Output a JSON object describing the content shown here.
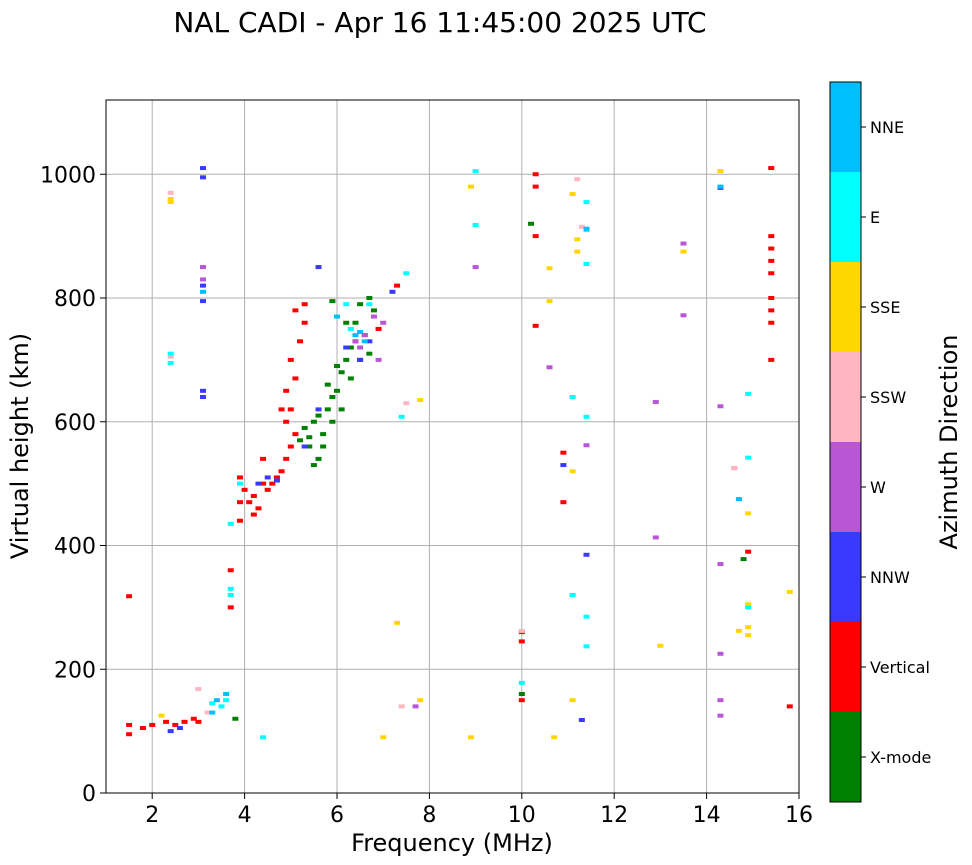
{
  "chart_data": {
    "type": "scatter",
    "title": "NAL CADI - Apr 16 11:45:00 2025 UTC",
    "xlabel": "Frequency (MHz)",
    "ylabel": "Virtual height (km)",
    "xlim": [
      1,
      16
    ],
    "ylim": [
      0,
      1120
    ],
    "xticks": [
      2,
      4,
      6,
      8,
      10,
      12,
      14,
      16
    ],
    "yticks": [
      0,
      200,
      400,
      600,
      800,
      1000
    ],
    "grid": true,
    "colorbar": {
      "label": "Azimuth Direction",
      "categories": [
        {
          "name": "X-mode",
          "color": "#008000"
        },
        {
          "name": "Vertical",
          "color": "#ff0000"
        },
        {
          "name": "NNW",
          "color": "#3a3aff"
        },
        {
          "name": "W",
          "color": "#b956d6"
        },
        {
          "name": "SSW",
          "color": "#ffb6c1"
        },
        {
          "name": "SSE",
          "color": "#ffd700"
        },
        {
          "name": "E",
          "color": "#00ffff"
        },
        {
          "name": "NNE",
          "color": "#00bfff"
        }
      ]
    },
    "series": [
      {
        "name": "X-mode",
        "points": [
          [
            5.3,
            590
          ],
          [
            5.4,
            575
          ],
          [
            5.5,
            600
          ],
          [
            5.6,
            610
          ],
          [
            5.7,
            560
          ],
          [
            5.8,
            620
          ],
          [
            5.9,
            640
          ],
          [
            6.0,
            650
          ],
          [
            6.1,
            680
          ],
          [
            6.2,
            700
          ],
          [
            6.3,
            720
          ],
          [
            6.4,
            760
          ],
          [
            6.5,
            790
          ],
          [
            6.6,
            740
          ],
          [
            6.7,
            710
          ],
          [
            6.8,
            780
          ],
          [
            5.5,
            530
          ],
          [
            5.7,
            580
          ],
          [
            5.9,
            600
          ],
          [
            6.1,
            620
          ],
          [
            6.3,
            670
          ],
          [
            6.0,
            690
          ],
          [
            5.8,
            660
          ],
          [
            6.2,
            760
          ],
          [
            6.5,
            700
          ],
          [
            5.6,
            540
          ],
          [
            5.4,
            560
          ],
          [
            6.4,
            730
          ],
          [
            3.8,
            120
          ],
          [
            10.2,
            920
          ],
          [
            10.0,
            160
          ],
          [
            14.8,
            378
          ],
          [
            5.9,
            795
          ],
          [
            6.7,
            800
          ],
          [
            5.2,
            570
          ]
        ]
      },
      {
        "name": "Vertical",
        "points": [
          [
            4.0,
            490
          ],
          [
            4.1,
            470
          ],
          [
            4.2,
            480
          ],
          [
            4.3,
            460
          ],
          [
            4.4,
            500
          ],
          [
            4.5,
            490
          ],
          [
            4.6,
            500
          ],
          [
            4.7,
            510
          ],
          [
            4.8,
            520
          ],
          [
            4.9,
            540
          ],
          [
            5.0,
            560
          ],
          [
            5.1,
            580
          ],
          [
            4.9,
            600
          ],
          [
            5.0,
            620
          ],
          [
            4.9,
            650
          ],
          [
            5.1,
            670
          ],
          [
            5.0,
            700
          ],
          [
            5.2,
            730
          ],
          [
            5.3,
            760
          ],
          [
            5.3,
            790
          ],
          [
            5.1,
            780
          ],
          [
            4.8,
            620
          ],
          [
            4.2,
            450
          ],
          [
            3.9,
            440
          ],
          [
            3.9,
            470
          ],
          [
            3.9,
            510
          ],
          [
            4.4,
            540
          ],
          [
            3.7,
            300
          ],
          [
            3.7,
            360
          ],
          [
            1.5,
            95
          ],
          [
            1.5,
            110
          ],
          [
            1.5,
            318
          ],
          [
            1.8,
            105
          ],
          [
            2.0,
            110
          ],
          [
            2.3,
            115
          ],
          [
            2.5,
            110
          ],
          [
            2.7,
            115
          ],
          [
            2.9,
            120
          ],
          [
            3.0,
            115
          ],
          [
            10.3,
            1000
          ],
          [
            10.3,
            980
          ],
          [
            10.3,
            900
          ],
          [
            10.3,
            755
          ],
          [
            10.0,
            150
          ],
          [
            10.0,
            245
          ],
          [
            10.0,
            260
          ],
          [
            10.9,
            470
          ],
          [
            10.9,
            550
          ],
          [
            15.4,
            1010
          ],
          [
            15.4,
            900
          ],
          [
            15.4,
            880
          ],
          [
            15.4,
            860
          ],
          [
            15.4,
            840
          ],
          [
            15.4,
            800
          ],
          [
            15.4,
            780
          ],
          [
            15.4,
            760
          ],
          [
            15.4,
            700
          ],
          [
            14.9,
            390
          ],
          [
            15.8,
            140
          ],
          [
            7.3,
            820
          ],
          [
            6.9,
            750
          ]
        ]
      },
      {
        "name": "NNW",
        "points": [
          [
            3.1,
            1010
          ],
          [
            3.1,
            995
          ],
          [
            3.1,
            820
          ],
          [
            3.1,
            795
          ],
          [
            3.1,
            650
          ],
          [
            3.1,
            640
          ],
          [
            4.3,
            500
          ],
          [
            4.5,
            510
          ],
          [
            4.7,
            505
          ],
          [
            5.3,
            560
          ],
          [
            5.6,
            620
          ],
          [
            6.5,
            700
          ],
          [
            6.7,
            730
          ],
          [
            2.4,
            100
          ],
          [
            2.6,
            105
          ],
          [
            10.9,
            530
          ],
          [
            11.4,
            385
          ],
          [
            11.3,
            118
          ],
          [
            14.3,
            978
          ],
          [
            5.6,
            850
          ],
          [
            6.2,
            720
          ],
          [
            7.2,
            810
          ]
        ]
      },
      {
        "name": "W",
        "points": [
          [
            3.1,
            850
          ],
          [
            3.1,
            830
          ],
          [
            6.5,
            720
          ],
          [
            6.6,
            740
          ],
          [
            6.8,
            770
          ],
          [
            7.0,
            760
          ],
          [
            6.4,
            730
          ],
          [
            6.9,
            700
          ],
          [
            7.7,
            140
          ],
          [
            9.0,
            850
          ],
          [
            10.6,
            688
          ],
          [
            11.4,
            562
          ],
          [
            12.9,
            632
          ],
          [
            13.5,
            772
          ],
          [
            13.5,
            888
          ],
          [
            14.3,
            625
          ],
          [
            14.3,
            370
          ],
          [
            14.3,
            225
          ],
          [
            14.3,
            150
          ],
          [
            14.3,
            125
          ],
          [
            12.9,
            413
          ],
          [
            14.6,
            525
          ]
        ]
      },
      {
        "name": "SSW",
        "points": [
          [
            2.4,
            970
          ],
          [
            2.4,
            705
          ],
          [
            3.0,
            168
          ],
          [
            7.5,
            630
          ],
          [
            7.4,
            140
          ],
          [
            10.0,
            262
          ],
          [
            11.2,
            992
          ],
          [
            11.3,
            915
          ],
          [
            14.6,
            525
          ],
          [
            3.2,
            130
          ]
        ]
      },
      {
        "name": "SSE",
        "points": [
          [
            2.4,
            960
          ],
          [
            2.4,
            955
          ],
          [
            7.3,
            275
          ],
          [
            7.0,
            90
          ],
          [
            8.9,
            980
          ],
          [
            8.9,
            90
          ],
          [
            10.6,
            848
          ],
          [
            10.6,
            795
          ],
          [
            10.7,
            90
          ],
          [
            11.1,
            968
          ],
          [
            11.2,
            895
          ],
          [
            11.2,
            875
          ],
          [
            11.1,
            520
          ],
          [
            11.1,
            150
          ],
          [
            13.0,
            238
          ],
          [
            13.5,
            875
          ],
          [
            14.3,
            1005
          ],
          [
            14.7,
            262
          ],
          [
            14.9,
            452
          ],
          [
            14.9,
            305
          ],
          [
            14.9,
            268
          ],
          [
            14.9,
            255
          ],
          [
            15.8,
            325
          ],
          [
            7.8,
            150
          ],
          [
            7.8,
            635
          ],
          [
            2.2,
            125
          ]
        ]
      },
      {
        "name": "E",
        "points": [
          [
            2.4,
            710
          ],
          [
            2.4,
            695
          ],
          [
            3.7,
            330
          ],
          [
            3.7,
            320
          ],
          [
            3.7,
            435
          ],
          [
            3.9,
            500
          ],
          [
            4.4,
            90
          ],
          [
            3.6,
            150
          ],
          [
            3.5,
            140
          ],
          [
            6.2,
            790
          ],
          [
            6.7,
            790
          ],
          [
            6.3,
            750
          ],
          [
            9.0,
            1005
          ],
          [
            9.0,
            918
          ],
          [
            10.0,
            178
          ],
          [
            11.1,
            640
          ],
          [
            11.1,
            320
          ],
          [
            11.4,
            955
          ],
          [
            11.4,
            910
          ],
          [
            11.4,
            855
          ],
          [
            11.4,
            608
          ],
          [
            11.4,
            285
          ],
          [
            11.4,
            237
          ],
          [
            14.9,
            645
          ],
          [
            14.9,
            542
          ],
          [
            14.9,
            300
          ],
          [
            7.4,
            608
          ],
          [
            7.5,
            840
          ],
          [
            3.3,
            145
          ]
        ]
      },
      {
        "name": "NNE",
        "points": [
          [
            3.1,
            810
          ],
          [
            3.3,
            130
          ],
          [
            3.4,
            150
          ],
          [
            3.6,
            160
          ],
          [
            6.4,
            740
          ],
          [
            6.6,
            730
          ],
          [
            6.5,
            745
          ],
          [
            14.3,
            980
          ],
          [
            14.7,
            475
          ],
          [
            11.4,
            912
          ],
          [
            6.0,
            770
          ]
        ]
      }
    ]
  }
}
